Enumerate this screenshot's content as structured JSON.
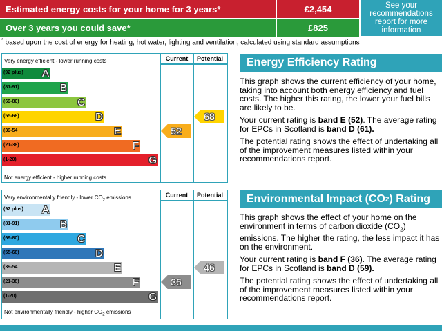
{
  "costs": {
    "row1_label": "Estimated energy costs for your home for 3 years*",
    "row1_value": "£2,454",
    "row2_label": "Over 3 years you could save*",
    "row2_value": "£825",
    "side_note": "See your recommendations report for more information",
    "footnote": "based upon the cost of energy for heating, hot water, lighting and ventilation, calculated using standard assumptions",
    "footnote_mark": "*"
  },
  "energy_chart": {
    "top_text": "Very energy efficient - lower running costs",
    "bottom_text": "Not energy efficient - higher running costs",
    "col_current": "Current",
    "col_potential": "Potential",
    "bands": [
      {
        "range": "(92 plus)",
        "letter": "A",
        "color": "#0f8a3c"
      },
      {
        "range": "(81-91)",
        "letter": "B",
        "color": "#1fa44b"
      },
      {
        "range": "(69-80)",
        "letter": "C",
        "color": "#8cc63f"
      },
      {
        "range": "(55-68)",
        "letter": "D",
        "color": "#ffd400"
      },
      {
        "range": "(39-54",
        "letter": "E",
        "color": "#f8ad1c"
      },
      {
        "range": "(21-38)",
        "letter": "F",
        "color": "#f06b22"
      },
      {
        "range": "(1-20)",
        "letter": "G",
        "color": "#e4202b"
      }
    ],
    "current": {
      "value": "52",
      "band": 4,
      "color": "#f8ad1c"
    },
    "potential": {
      "value": "68",
      "band": 3,
      "color": "#ffd400"
    }
  },
  "env_chart": {
    "top_text": "Very environmentally friendly - lower CO",
    "top_text_sub": "2",
    "top_text_tail": " emissions",
    "bottom_text": "Not environmentally friendly - higher CO",
    "bottom_text_sub": "2",
    "bottom_text_tail": " emissions",
    "col_current": "Current",
    "col_potential": "Potential",
    "bands": [
      {
        "range": "(92 plus)",
        "letter": "A",
        "color": "#c9e4f4"
      },
      {
        "range": "(81-91)",
        "letter": "B",
        "color": "#8fcbee"
      },
      {
        "range": "(69-80)",
        "letter": "C",
        "color": "#2fa8e0"
      },
      {
        "range": "(55-68)",
        "letter": "D",
        "color": "#2f77b9"
      },
      {
        "range": "(39-54",
        "letter": "E",
        "color": "#b5b5b5"
      },
      {
        "range": "(21-38)",
        "letter": "F",
        "color": "#8d8d8d"
      },
      {
        "range": "(1-20)",
        "letter": "G",
        "color": "#6f6f6f"
      }
    ],
    "current": {
      "value": "36",
      "band": 5,
      "color": "#8d8d8d"
    },
    "potential": {
      "value": "46",
      "band": 4,
      "color": "#b5b5b5"
    }
  },
  "eer_panel": {
    "title": "Energy Efficiency Rating",
    "p1": "This graph shows the current efficiency of your home, taking into account both energy efficiency and fuel costs. The higher this rating, the lower your fuel bills are likely to be.",
    "p2_a": "Your current rating is ",
    "p2_b": "band E (52)",
    "p2_c": ". The average rating for EPCs in Scotland is ",
    "p2_d": "band D (61).",
    "p3": "The potential rating shows the effect of undertaking all of the improvement measures listed within your recommendations report."
  },
  "ei_panel": {
    "title_a": "Environmental Impact (CO",
    "title_sub": "2",
    "title_b": ") Rating",
    "p1_a": "This graph shows the effect of your home on the environment in terms of carbon dioxide (CO",
    "p1_sub": "2",
    "p1_b": ") emissions. The higher the rating, the less impact it has on the environment.",
    "p2_a": "Your current rating is ",
    "p2_b": "band F (36)",
    "p2_c": ". The average rating for EPCs in Scotland is ",
    "p2_d": "band D (59).",
    "p3": "The potential rating shows the effect of undertaking all of the improvement measures listed within your recommendations report."
  }
}
